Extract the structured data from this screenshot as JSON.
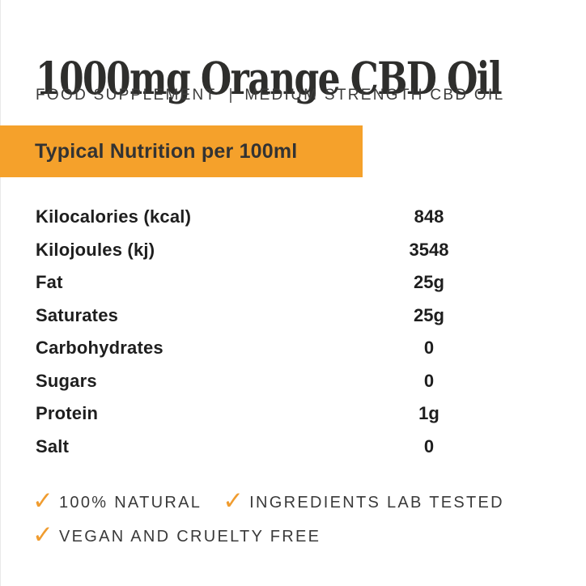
{
  "header": {
    "title": "1000mg Orange CBD Oil",
    "subtitle_left": "FOOD SUPPLEMENT",
    "subtitle_separator": "|",
    "subtitle_right": "MEDIUM STRENGTH CBD OIL"
  },
  "banner": {
    "title": "Typical Nutrition per 100ml"
  },
  "nutrition_table": {
    "rows": [
      {
        "label": "Kilocalories (kcal)",
        "value": "848"
      },
      {
        "label": "Kilojoules (kj)",
        "value": "3548"
      },
      {
        "label": "Fat",
        "value": "25g"
      },
      {
        "label": "Saturates",
        "value": "25g"
      },
      {
        "label": "Carbohydrates",
        "value": "0"
      },
      {
        "label": "Sugars",
        "value": "0"
      },
      {
        "label": "Protein",
        "value": "1g"
      },
      {
        "label": "Salt",
        "value": "0"
      }
    ]
  },
  "badges": {
    "checkmark_icon": "✓",
    "items": [
      {
        "text": "100% NATURAL"
      },
      {
        "text": "INGREDIENTS LAB TESTED"
      },
      {
        "text": "VEGAN AND CRUELTY FREE"
      }
    ]
  },
  "colors": {
    "accent_orange": "#f5a12b",
    "checkmark_orange": "#f09c2f",
    "title_text": "#2e2e2c",
    "body_text": "#1e1e1e",
    "subtitle_text": "#3b3b3a",
    "banner_text": "#333333",
    "background": "#ffffff"
  }
}
